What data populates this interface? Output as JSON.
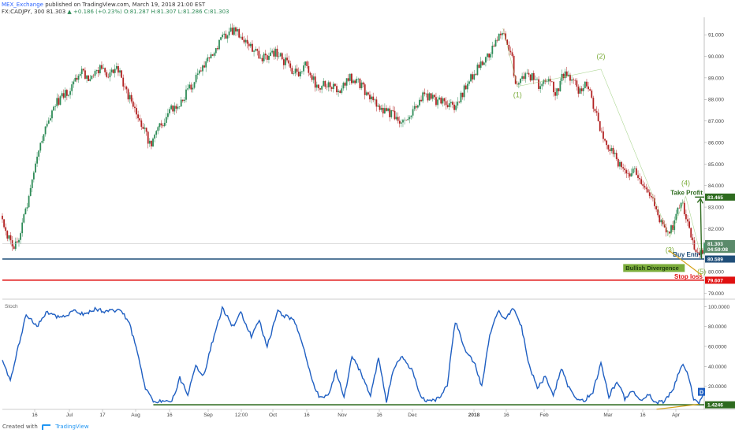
{
  "header": {
    "publisher": "MEX_Exchange",
    "published_line": "published on TradingView.com, March 19, 2018 21:00 EST",
    "symbol_line": "FX:CADJPY, 300  81.303",
    "change": "▲ +0.186 (+0.23%)",
    "ohlc": "O:81.287  H:81.307  L:81.286  C:81.303"
  },
  "footer": {
    "created_with": "Created with",
    "brand": "TradingView"
  },
  "colors": {
    "up_candle": "#2e8b57",
    "down_candle": "#b22222",
    "stoch_line": "#1f5fc2",
    "entry_line": "#1f4e79",
    "stop_line": "#e01010",
    "target_line": "#2e6b1f",
    "wave_label": "#7cad3c",
    "divergence_line": "#d4a017"
  },
  "chart_data": [
    {
      "type": "candlestick",
      "title": "",
      "symbol": "FX:CADJPY",
      "interval": "300",
      "ylim": [
        78.8,
        91.7
      ],
      "y_ticks": [
        "91.000",
        "90.000",
        "89.000",
        "88.000",
        "87.000",
        "86.000",
        "85.000",
        "84.000",
        "83.000",
        "82.000",
        "80.000",
        "79.000"
      ],
      "x_ticks": [
        "16",
        "Jul",
        "17",
        "Aug",
        "16",
        "Sep",
        "12:00",
        "Oct",
        "16",
        "Nov",
        "16",
        "Dec",
        "2018",
        "16",
        "Feb",
        "Mar",
        "16",
        "Apr"
      ],
      "path_anchors": [
        {
          "t": 0,
          "p": 82.6
        },
        {
          "t": 4,
          "p": 81.6
        },
        {
          "t": 8,
          "p": 81.1
        },
        {
          "t": 14,
          "p": 81.9
        },
        {
          "t": 22,
          "p": 84.0
        },
        {
          "t": 30,
          "p": 86.2
        },
        {
          "t": 40,
          "p": 87.8
        },
        {
          "t": 50,
          "p": 88.4
        },
        {
          "t": 58,
          "p": 89.3
        },
        {
          "t": 66,
          "p": 89.0
        },
        {
          "t": 74,
          "p": 89.4
        },
        {
          "t": 80,
          "p": 89.1
        },
        {
          "t": 86,
          "p": 89.6
        },
        {
          "t": 92,
          "p": 88.6
        },
        {
          "t": 98,
          "p": 87.8
        },
        {
          "t": 106,
          "p": 86.8
        },
        {
          "t": 112,
          "p": 85.8
        },
        {
          "t": 118,
          "p": 86.6
        },
        {
          "t": 126,
          "p": 87.4
        },
        {
          "t": 134,
          "p": 87.9
        },
        {
          "t": 142,
          "p": 88.6
        },
        {
          "t": 150,
          "p": 89.3
        },
        {
          "t": 158,
          "p": 90.1
        },
        {
          "t": 166,
          "p": 90.8
        },
        {
          "t": 174,
          "p": 91.2
        },
        {
          "t": 182,
          "p": 90.9
        },
        {
          "t": 190,
          "p": 90.3
        },
        {
          "t": 198,
          "p": 89.9
        },
        {
          "t": 206,
          "p": 90.2
        },
        {
          "t": 214,
          "p": 89.7
        },
        {
          "t": 222,
          "p": 89.2
        },
        {
          "t": 230,
          "p": 89.6
        },
        {
          "t": 238,
          "p": 88.5
        },
        {
          "t": 246,
          "p": 88.8
        },
        {
          "t": 254,
          "p": 88.3
        },
        {
          "t": 262,
          "p": 89.0
        },
        {
          "t": 270,
          "p": 88.7
        },
        {
          "t": 278,
          "p": 88.1
        },
        {
          "t": 286,
          "p": 87.6
        },
        {
          "t": 294,
          "p": 87.3
        },
        {
          "t": 302,
          "p": 86.9
        },
        {
          "t": 310,
          "p": 87.5
        },
        {
          "t": 318,
          "p": 88.3
        },
        {
          "t": 326,
          "p": 88.0
        },
        {
          "t": 334,
          "p": 87.8
        },
        {
          "t": 342,
          "p": 87.6
        },
        {
          "t": 350,
          "p": 88.6
        },
        {
          "t": 358,
          "p": 89.4
        },
        {
          "t": 366,
          "p": 89.9
        },
        {
          "t": 372,
          "p": 90.6
        },
        {
          "t": 378,
          "p": 91.3
        },
        {
          "t": 384,
          "p": 90.2
        },
        {
          "t": 388,
          "p": 88.6
        },
        {
          "t": 394,
          "p": 89.0
        },
        {
          "t": 400,
          "p": 89.1
        },
        {
          "t": 406,
          "p": 88.6
        },
        {
          "t": 412,
          "p": 88.9
        },
        {
          "t": 418,
          "p": 88.3
        },
        {
          "t": 424,
          "p": 89.2
        },
        {
          "t": 430,
          "p": 88.9
        },
        {
          "t": 436,
          "p": 88.4
        },
        {
          "t": 442,
          "p": 88.7
        },
        {
          "t": 448,
          "p": 87.4
        },
        {
          "t": 454,
          "p": 86.2
        },
        {
          "t": 460,
          "p": 85.6
        },
        {
          "t": 466,
          "p": 84.9
        },
        {
          "t": 472,
          "p": 84.5
        },
        {
          "t": 478,
          "p": 84.8
        },
        {
          "t": 484,
          "p": 84.1
        },
        {
          "t": 490,
          "p": 83.4
        },
        {
          "t": 496,
          "p": 82.5
        },
        {
          "t": 500,
          "p": 81.9
        },
        {
          "t": 504,
          "p": 81.8
        },
        {
          "t": 508,
          "p": 82.4
        },
        {
          "t": 512,
          "p": 83.3
        },
        {
          "t": 516,
          "p": 82.6
        },
        {
          "t": 520,
          "p": 81.7
        },
        {
          "t": 524,
          "p": 80.9
        },
        {
          "t": 527,
          "p": 80.7
        },
        {
          "t": 530,
          "p": 81.3
        }
      ],
      "last_price": 81.303,
      "countdown": "04:59:08",
      "levels": [
        {
          "name": "Take Profit",
          "price": "83.465",
          "value": 83.465,
          "color": "#2e6b1f"
        },
        {
          "name": "Buy Entry",
          "price": "80.589",
          "value": 80.589,
          "color": "#1f4e79"
        },
        {
          "name": "Stop loss",
          "price": "79.607",
          "value": 79.607,
          "color": "#e01010"
        }
      ],
      "wave_labels": [
        {
          "label": "(1)",
          "t": 389,
          "p": 88.1
        },
        {
          "label": "(2)",
          "t": 452,
          "p": 89.9
        },
        {
          "label": "(3)",
          "t": 504,
          "p": 80.9
        },
        {
          "label": "(4)",
          "t": 516,
          "p": 84.0
        },
        {
          "label": "(5)",
          "t": 528,
          "p": 79.9
        }
      ],
      "annotation": "Bullish Divergence"
    },
    {
      "type": "line",
      "title": "Stoch",
      "ylim": [
        0,
        105
      ],
      "y_ticks": [
        "100.0000",
        "80.0000",
        "60.0000",
        "40.0000",
        "20.0000"
      ],
      "indicator_value": "1.4246",
      "indicator_badge": "D",
      "anchors": [
        {
          "t": 0,
          "v": 45
        },
        {
          "t": 6,
          "v": 25
        },
        {
          "t": 12,
          "v": 60
        },
        {
          "t": 18,
          "v": 92
        },
        {
          "t": 26,
          "v": 80
        },
        {
          "t": 34,
          "v": 95
        },
        {
          "t": 44,
          "v": 88
        },
        {
          "t": 54,
          "v": 96
        },
        {
          "t": 62,
          "v": 92
        },
        {
          "t": 70,
          "v": 97
        },
        {
          "t": 80,
          "v": 95
        },
        {
          "t": 90,
          "v": 96
        },
        {
          "t": 96,
          "v": 82
        },
        {
          "t": 102,
          "v": 55
        },
        {
          "t": 108,
          "v": 18
        },
        {
          "t": 114,
          "v": 5
        },
        {
          "t": 122,
          "v": 4
        },
        {
          "t": 128,
          "v": 5
        },
        {
          "t": 134,
          "v": 28
        },
        {
          "t": 140,
          "v": 12
        },
        {
          "t": 146,
          "v": 40
        },
        {
          "t": 152,
          "v": 30
        },
        {
          "t": 158,
          "v": 62
        },
        {
          "t": 166,
          "v": 98
        },
        {
          "t": 174,
          "v": 80
        },
        {
          "t": 180,
          "v": 95
        },
        {
          "t": 188,
          "v": 70
        },
        {
          "t": 194,
          "v": 85
        },
        {
          "t": 200,
          "v": 60
        },
        {
          "t": 208,
          "v": 95
        },
        {
          "t": 214,
          "v": 90
        },
        {
          "t": 220,
          "v": 88
        },
        {
          "t": 228,
          "v": 55
        },
        {
          "t": 234,
          "v": 25
        },
        {
          "t": 240,
          "v": 8
        },
        {
          "t": 246,
          "v": 12
        },
        {
          "t": 252,
          "v": 35
        },
        {
          "t": 258,
          "v": 8
        },
        {
          "t": 264,
          "v": 50
        },
        {
          "t": 272,
          "v": 30
        },
        {
          "t": 278,
          "v": 10
        },
        {
          "t": 284,
          "v": 48
        },
        {
          "t": 290,
          "v": 5
        },
        {
          "t": 296,
          "v": 40
        },
        {
          "t": 302,
          "v": 50
        },
        {
          "t": 310,
          "v": 35
        },
        {
          "t": 316,
          "v": 8
        },
        {
          "t": 322,
          "v": 5
        },
        {
          "t": 330,
          "v": 8
        },
        {
          "t": 336,
          "v": 22
        },
        {
          "t": 342,
          "v": 85
        },
        {
          "t": 350,
          "v": 55
        },
        {
          "t": 356,
          "v": 45
        },
        {
          "t": 362,
          "v": 20
        },
        {
          "t": 368,
          "v": 70
        },
        {
          "t": 374,
          "v": 95
        },
        {
          "t": 380,
          "v": 88
        },
        {
          "t": 386,
          "v": 98
        },
        {
          "t": 392,
          "v": 80
        },
        {
          "t": 398,
          "v": 40
        },
        {
          "t": 404,
          "v": 18
        },
        {
          "t": 410,
          "v": 30
        },
        {
          "t": 416,
          "v": 10
        },
        {
          "t": 422,
          "v": 38
        },
        {
          "t": 428,
          "v": 18
        },
        {
          "t": 434,
          "v": 8
        },
        {
          "t": 440,
          "v": 6
        },
        {
          "t": 446,
          "v": 15
        },
        {
          "t": 452,
          "v": 42
        },
        {
          "t": 458,
          "v": 10
        },
        {
          "t": 464,
          "v": 25
        },
        {
          "t": 470,
          "v": 8
        },
        {
          "t": 476,
          "v": 15
        },
        {
          "t": 482,
          "v": 6
        },
        {
          "t": 488,
          "v": 12
        },
        {
          "t": 494,
          "v": 3
        },
        {
          "t": 500,
          "v": 5
        },
        {
          "t": 506,
          "v": 15
        },
        {
          "t": 510,
          "v": 30
        },
        {
          "t": 514,
          "v": 43
        },
        {
          "t": 518,
          "v": 30
        },
        {
          "t": 522,
          "v": 8
        },
        {
          "t": 526,
          "v": 4
        },
        {
          "t": 530,
          "v": 12
        }
      ],
      "support_value": 1.4246
    }
  ]
}
